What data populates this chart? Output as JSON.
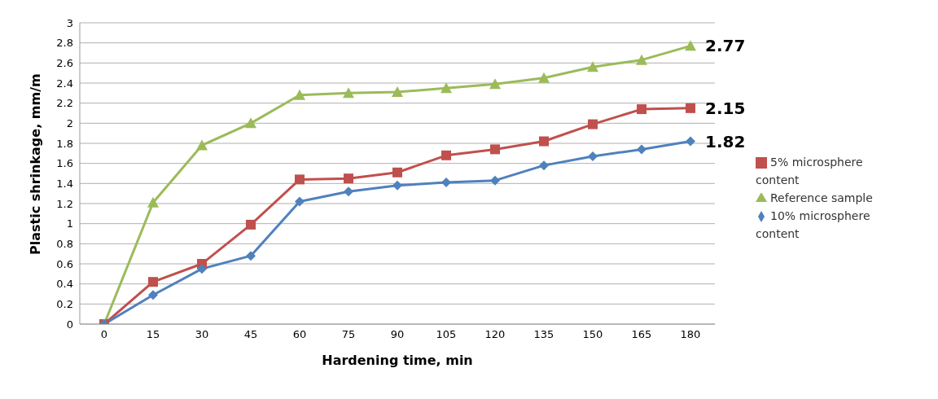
{
  "chart_data": {
    "type": "line",
    "xlabel": "Hardening time, min",
    "ylabel": "Plastic shrinkage, mm/m",
    "categories": [
      "0",
      "15",
      "30",
      "45",
      "60",
      "75",
      "90",
      "105",
      "120",
      "135",
      "150",
      "165",
      "180"
    ],
    "series": [
      {
        "name": "5% microsphere content",
        "color": "#c0504d",
        "marker": "square",
        "values": [
          0,
          0.42,
          0.6,
          0.99,
          1.44,
          1.45,
          1.51,
          1.68,
          1.74,
          1.82,
          1.99,
          2.14,
          2.15
        ],
        "value_labels": [
          null,
          null,
          null,
          null,
          null,
          null,
          null,
          null,
          null,
          null,
          null,
          null,
          "2.15"
        ]
      },
      {
        "name": "Reference sample",
        "color": "#9bbb59",
        "marker": "triangle",
        "values": [
          0,
          1.21,
          1.78,
          2.0,
          2.28,
          2.3,
          2.31,
          2.35,
          2.39,
          2.45,
          2.56,
          2.63,
          2.77
        ],
        "value_labels": [
          null,
          null,
          null,
          null,
          null,
          null,
          null,
          null,
          null,
          null,
          null,
          null,
          "2.77"
        ]
      },
      {
        "name": "10% microsphere content",
        "color": "#4f81bd",
        "marker": "diamond",
        "values": [
          0,
          0.29,
          0.55,
          0.68,
          1.22,
          1.32,
          1.38,
          1.41,
          1.43,
          1.58,
          1.67,
          1.74,
          1.82
        ],
        "value_labels": [
          null,
          null,
          null,
          null,
          null,
          null,
          null,
          null,
          null,
          null,
          null,
          null,
          "1.82"
        ]
      }
    ],
    "ylim": [
      0,
      3
    ],
    "yticks": [
      0,
      0.2,
      0.4,
      0.6,
      0.8,
      1,
      1.2,
      1.4,
      1.6,
      1.8,
      2,
      2.2,
      2.4,
      2.6,
      2.8,
      3
    ],
    "grid": "y",
    "legend": "right",
    "line_style": "solid"
  }
}
